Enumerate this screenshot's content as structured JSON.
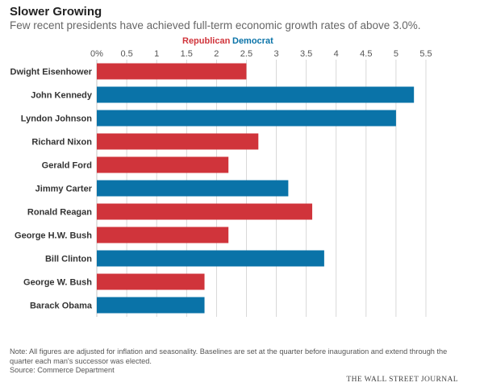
{
  "header": {
    "title": "Slower Growing",
    "subtitle": "Few recent presidents have achieved full-term economic growth rates of above 3.0%."
  },
  "legend": {
    "republican": "Republican",
    "democrat": "Democrat"
  },
  "colors": {
    "republican": "#d0343b",
    "democrat": "#0a73a8",
    "grid": "#cfcfcf"
  },
  "chart_data": {
    "type": "bar",
    "orientation": "horizontal",
    "categories": [
      "Dwight Eisenhower",
      "John Kennedy",
      "Lyndon Johnson",
      "Richard Nixon",
      "Gerald Ford",
      "Jimmy Carter",
      "Ronald Reagan",
      "George H.W. Bush",
      "Bill Clinton",
      "George W. Bush",
      "Barack Obama"
    ],
    "values": [
      2.5,
      5.3,
      5.0,
      2.7,
      2.2,
      3.2,
      3.6,
      2.2,
      3.8,
      1.8,
      1.8
    ],
    "party": [
      "Republican",
      "Democrat",
      "Democrat",
      "Republican",
      "Republican",
      "Democrat",
      "Republican",
      "Republican",
      "Democrat",
      "Republican",
      "Democrat"
    ],
    "x_ticks": [
      "0%",
      "0.5",
      "1",
      "1.5",
      "2",
      "2.5",
      "3",
      "3.5",
      "4",
      "4.5",
      "5",
      "5.5"
    ],
    "xlim": [
      0,
      5.5
    ],
    "grid": true,
    "legend_position": "top"
  },
  "footer": {
    "note": "Note: All figures are adjusted for inflation and seasonality. Baselines are set at the quarter before inauguration and extend through the quarter each man's successor was elected.",
    "source": "Source: Commerce Department",
    "brand": "THE WALL STREET JOURNAL"
  }
}
